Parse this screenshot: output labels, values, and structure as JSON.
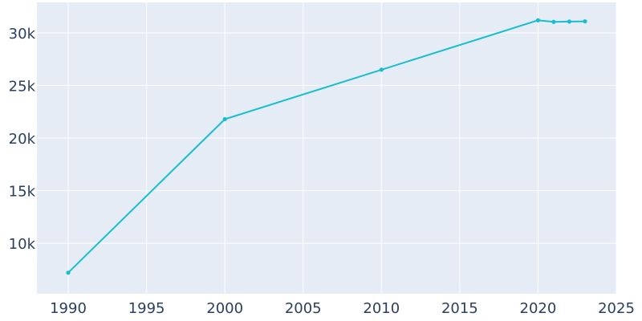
{
  "chart_data": {
    "type": "line",
    "title": "",
    "xlabel": "",
    "ylabel": "",
    "xlim": [
      1988,
      2025
    ],
    "ylim": [
      5200,
      32900
    ],
    "grid": true,
    "legend": "none",
    "x_ticks": [
      1990,
      1995,
      2000,
      2005,
      2010,
      2015,
      2020,
      2025
    ],
    "x_tick_labels": [
      "1990",
      "1995",
      "2000",
      "2005",
      "2010",
      "2015",
      "2020",
      "2025"
    ],
    "y_ticks": [
      10000,
      15000,
      20000,
      25000,
      30000
    ],
    "y_tick_labels": [
      "10k",
      "15k",
      "20k",
      "25k",
      "30k"
    ],
    "series": [
      {
        "color": "#17becf",
        "x": [
          1990,
          2000,
          2010,
          2020,
          2021,
          2022,
          2023
        ],
        "y": [
          7200,
          21800,
          26500,
          31200,
          31050,
          31080,
          31100
        ]
      }
    ],
    "colors": {
      "plot_background": "#e5ecf6",
      "grid": "#ffffff",
      "text": "#2a3f5f"
    }
  }
}
